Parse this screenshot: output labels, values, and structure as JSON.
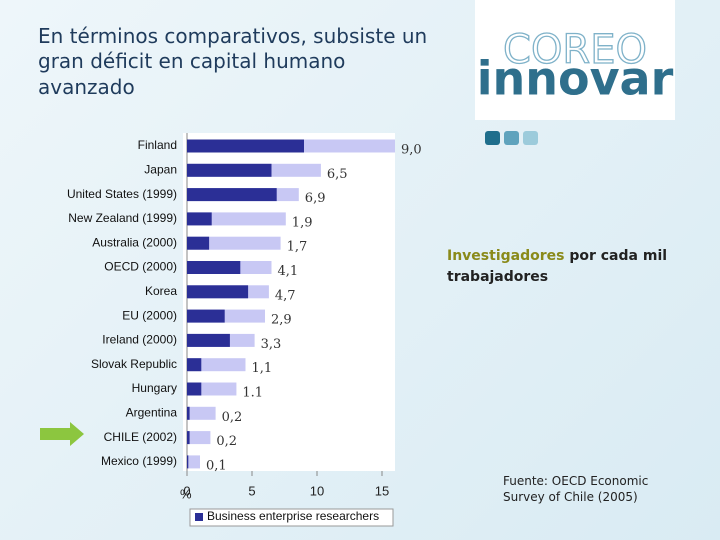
{
  "chart_data": {
    "type": "bar",
    "orientation": "horizontal",
    "title": "En términos comparativos, subsiste un gran déficit en capital humano avanzado",
    "logo_top": "COREO",
    "logo_bottom": "innovar",
    "annotation_highlight": "Investigadores",
    "annotation_rest": " por cada mil trabajadores",
    "source": "Fuente: OECD Economic Survey of Chile (2005)",
    "xlabel": "%",
    "categories": [
      "Finland",
      "Japan",
      "United States (1999)",
      "New Zealand (1999)",
      "Australia (2000)",
      "OECD (2000)",
      "Korea",
      "EU (2000)",
      "Ireland (2000)",
      "Slovak Republic",
      "Hungary",
      "Argentina",
      "CHILE (2002)",
      "Mexico (1999)"
    ],
    "series": [
      {
        "color": "#c8c8f4",
        "values": [
          16.0,
          10.3,
          8.6,
          7.6,
          7.2,
          6.5,
          6.3,
          6.0,
          5.2,
          4.5,
          3.8,
          2.2,
          1.8,
          1.0
        ]
      },
      {
        "name": "Business enterprise researchers",
        "color": "#2b2f96",
        "values": [
          9.0,
          6.5,
          6.9,
          1.9,
          1.7,
          4.1,
          4.7,
          2.9,
          3.3,
          1.1,
          1.1,
          0.2,
          0.2,
          0.1
        ],
        "value_labels": [
          "9,0",
          "6,5",
          "6,9",
          "1,9",
          "1,7",
          "4,1",
          "4,7",
          "2,9",
          "3,3",
          "1,1",
          "1.1",
          "0,2",
          "0,2",
          "0,1"
        ]
      }
    ],
    "xlim": [
      0,
      16
    ],
    "xticks": [
      0,
      5,
      10,
      15
    ]
  }
}
